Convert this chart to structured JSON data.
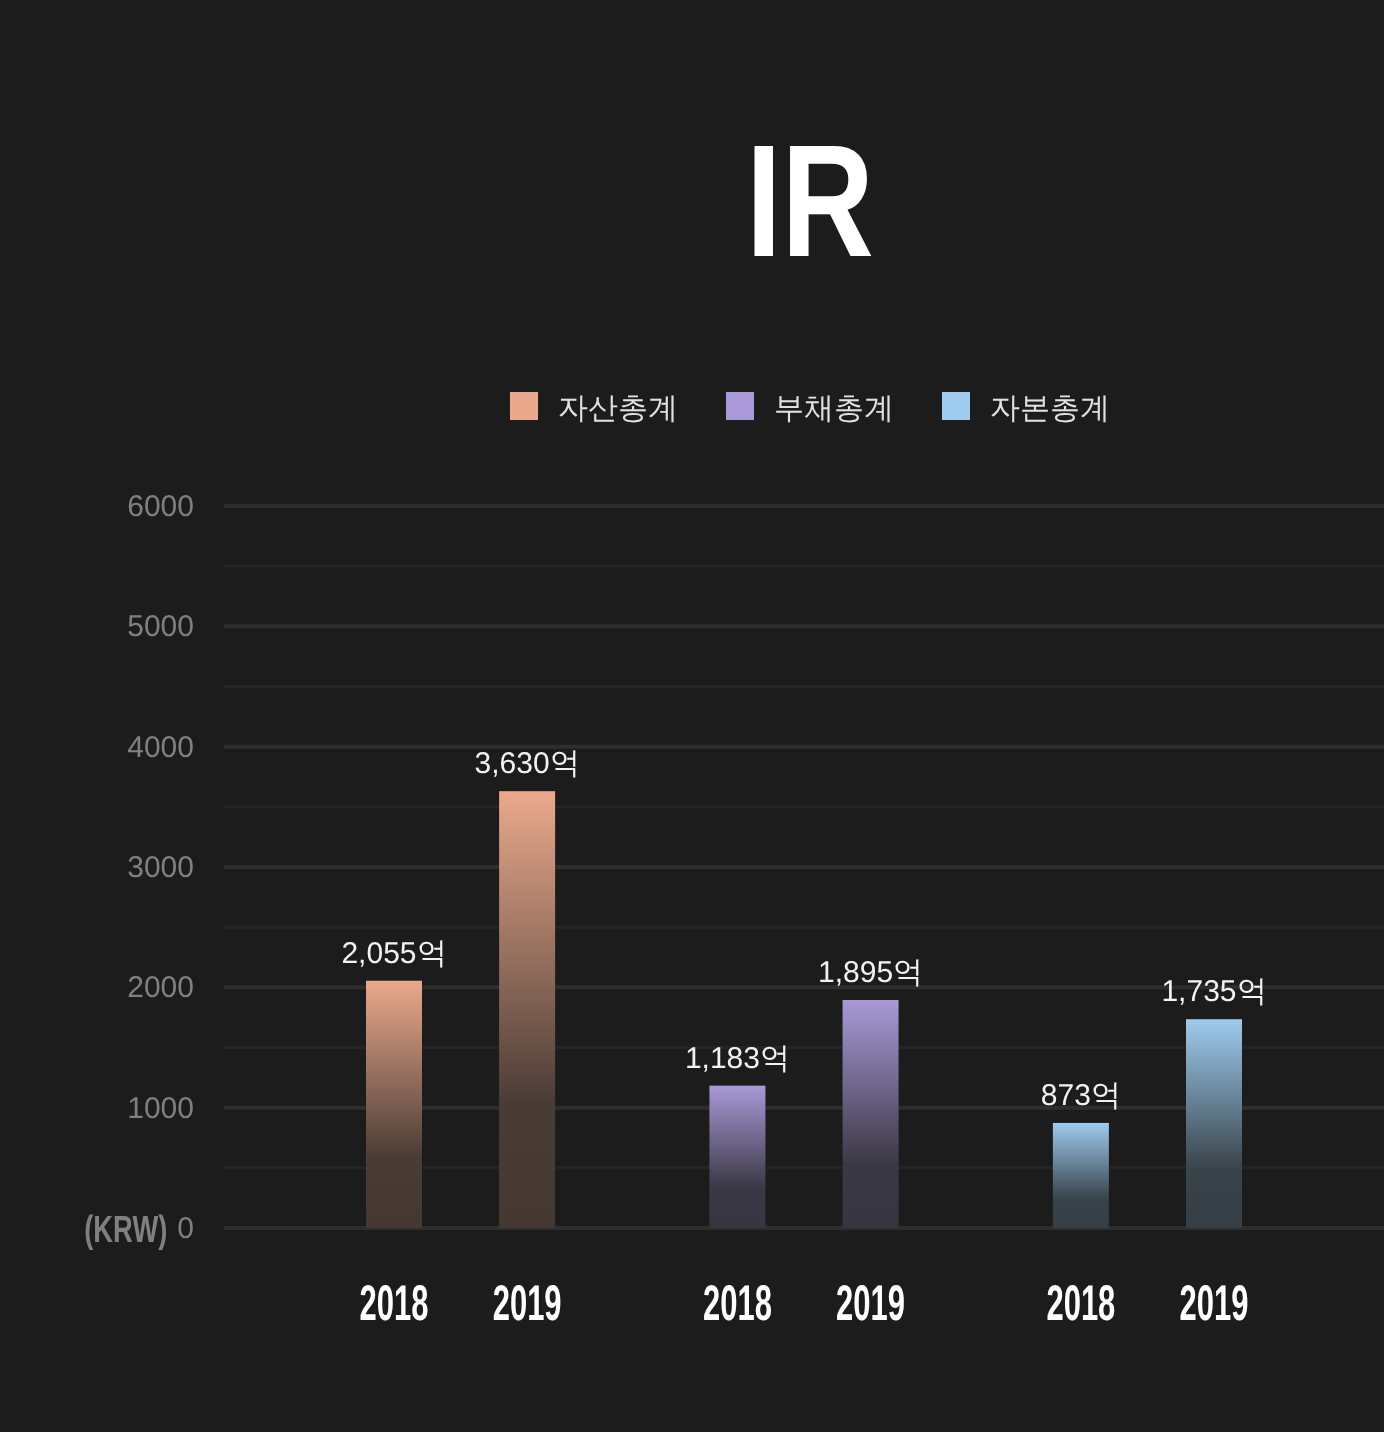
{
  "chart_data": {
    "type": "bar",
    "title": "IR",
    "ylabel": "(KRW)",
    "categories": [
      "2018",
      "2019",
      "2018",
      "2019",
      "2018",
      "2019"
    ],
    "series": [
      {
        "name": "자산총계",
        "color": "#eaa98c",
        "values": [
          2055,
          3630,
          null,
          null,
          null,
          null
        ],
        "value_labels": [
          "2,055억",
          "3,630억",
          null,
          null,
          null,
          null
        ]
      },
      {
        "name": "부채총계",
        "color": "#a999d8",
        "values": [
          null,
          null,
          1183,
          1895,
          null,
          null
        ],
        "value_labels": [
          null,
          null,
          "1,183억",
          "1,895억",
          null,
          null
        ]
      },
      {
        "name": "자본총계",
        "color": "#9ecbee",
        "values": [
          null,
          null,
          null,
          null,
          873,
          1735
        ],
        "value_labels": [
          null,
          null,
          null,
          null,
          "873억",
          "1,735억"
        ]
      }
    ],
    "ylim": [
      0,
      6000
    ],
    "yticks": [
      0,
      {
        "value": 500,
        "label": null
      },
      1000,
      {
        "value": 1500,
        "label": null
      },
      2000,
      {
        "value": 2500,
        "label": null
      },
      3000,
      {
        "value": 3500,
        "label": null
      },
      4000,
      {
        "value": 4500,
        "label": null
      },
      5000,
      {
        "value": 5500,
        "label": null
      },
      6000
    ],
    "grid": "y",
    "legend": "top"
  }
}
